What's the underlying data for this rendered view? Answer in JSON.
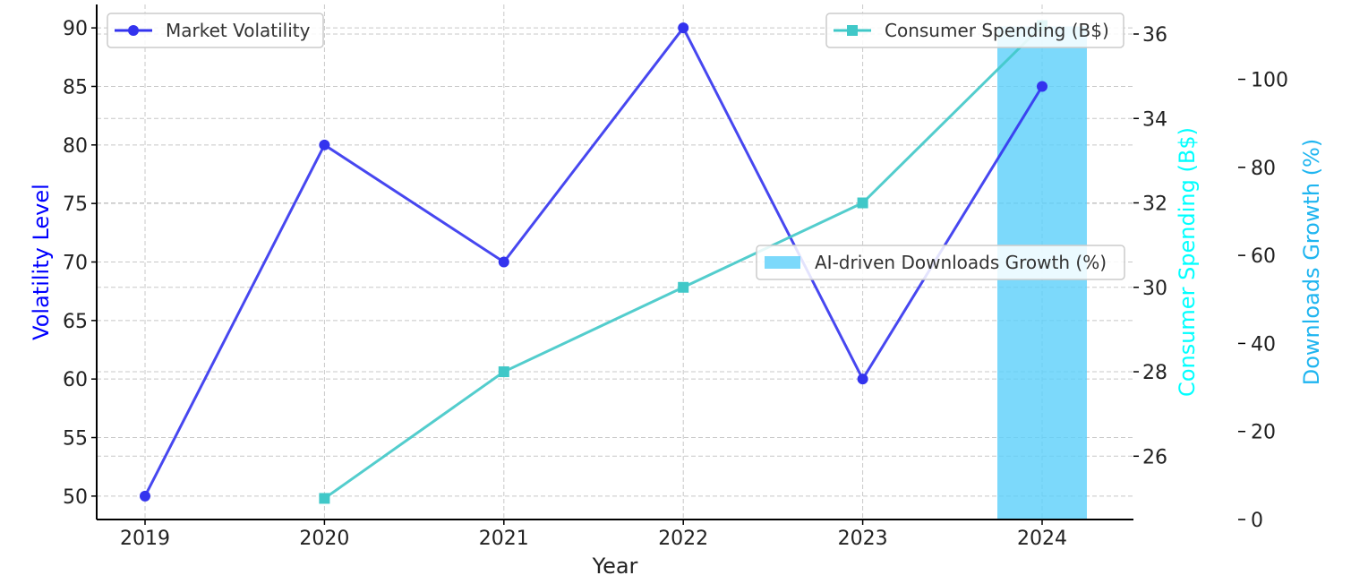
{
  "chart_data": {
    "type": "line",
    "x": [
      "2019",
      "2020",
      "2021",
      "2022",
      "2023",
      "2024"
    ],
    "xlabel": "Year",
    "grid": true,
    "series": [
      {
        "name": "Market Volatility",
        "chart_kind": "line",
        "axis": "left",
        "marker": "circle",
        "color": "#3333ee",
        "x": [
          "2019",
          "2020",
          "2021",
          "2022",
          "2023",
          "2024"
        ],
        "values": [
          50,
          80,
          70,
          90,
          60,
          85
        ]
      },
      {
        "name": "Consumer Spending (B$)",
        "chart_kind": "line",
        "axis": "right",
        "marker": "square",
        "color": "#40c8c8",
        "x": [
          "2020",
          "2021",
          "2022",
          "2023",
          "2024"
        ],
        "values": [
          25,
          28,
          30,
          32,
          36.2
        ]
      },
      {
        "name": "AI-driven Downloads Growth (%)",
        "chart_kind": "bar",
        "axis": "right2",
        "color": "#5bd0fa",
        "x": [
          "2024"
        ],
        "values": [
          112
        ]
      }
    ],
    "axes": {
      "left": {
        "label": "Volatility Level",
        "color": "#0000ff",
        "ylim": [
          48,
          92
        ],
        "ticks": [
          50,
          55,
          60,
          65,
          70,
          75,
          80,
          85,
          90
        ]
      },
      "right": {
        "label": "Consumer Spending (B$)",
        "color": "#00ffff",
        "ylim": [
          24.5,
          36.7
        ],
        "ticks": [
          26,
          28,
          30,
          32,
          34,
          36
        ]
      },
      "right2": {
        "label": "Downloads Growth (%)",
        "color": "#1fb5f0",
        "ylim": [
          0,
          117
        ],
        "ticks": [
          0,
          20,
          40,
          60,
          80,
          100
        ]
      }
    },
    "legends": [
      {
        "series": 0,
        "placement": "upper-left"
      },
      {
        "series": 1,
        "placement": "upper-right"
      },
      {
        "series": 2,
        "placement": "center-right"
      }
    ]
  }
}
